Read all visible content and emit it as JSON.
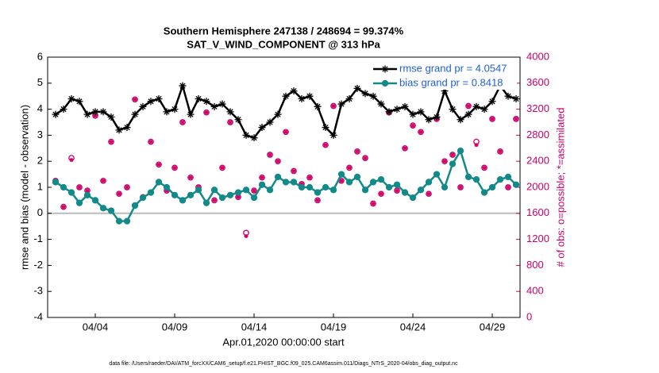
{
  "chart_data": {
    "type": "line",
    "title": "Southern Hemisphere 247138 / 248694 = 99.374%",
    "subtitle": "SAT_V_WIND_COMPONENT @ 313 hPa",
    "xlabel": "Apr.01,2020 00:00:00 start",
    "ylabel": "rmse and bias (model - observation)",
    "y2label": "# of obs: o=possible; *=assimilated",
    "footnote": "data file: /Users/raeder/DAI/ATM_forcXX/CAM6_setup/f.e21.FHIST_BGC.f09_025.CAM6assim.011/Diags_NTrS_2020-04/obs_diag_output.nc",
    "xlim": [
      0,
      29.75
    ],
    "xticks": [
      {
        "value": 3,
        "label": "04/04"
      },
      {
        "value": 8,
        "label": "04/09"
      },
      {
        "value": 13,
        "label": "04/14"
      },
      {
        "value": 18,
        "label": "04/19"
      },
      {
        "value": 23,
        "label": "04/24"
      },
      {
        "value": 28,
        "label": "04/29"
      }
    ],
    "ylim": [
      -4,
      6
    ],
    "yticks": [
      -4,
      -3,
      -2,
      -1,
      0,
      1,
      2,
      3,
      4,
      5,
      6
    ],
    "y2lim": [
      0,
      4000
    ],
    "y2ticks": [
      0,
      400,
      800,
      1200,
      1600,
      2000,
      2400,
      2800,
      3200,
      3600,
      4000
    ],
    "reference_line": 0,
    "legend": "upper right",
    "x": [
      0.5,
      1,
      1.5,
      2,
      2.5,
      3,
      3.5,
      4,
      4.5,
      5,
      5.5,
      6,
      6.5,
      7,
      7.5,
      8,
      8.5,
      9,
      9.5,
      10,
      10.5,
      11,
      11.5,
      12,
      12.5,
      13,
      13.5,
      14,
      14.5,
      15,
      15.5,
      16,
      16.5,
      17,
      17.5,
      18,
      18.5,
      19,
      19.5,
      20,
      20.5,
      21,
      21.5,
      22,
      22.5,
      23,
      23.5,
      24,
      24.5,
      25,
      25.5,
      26,
      26.5,
      27,
      27.5,
      28,
      28.5,
      29,
      29.5
    ],
    "series": [
      {
        "name": "rmse grand pr = 4.0547",
        "color": "#000000",
        "marker": "*",
        "line": true,
        "values": [
          3.8,
          4.0,
          4.4,
          4.3,
          3.8,
          3.9,
          3.9,
          3.7,
          3.2,
          3.3,
          3.8,
          4.1,
          4.3,
          4.4,
          3.9,
          4.0,
          4.9,
          3.8,
          4.4,
          4.3,
          4.1,
          4.2,
          3.9,
          3.6,
          3.0,
          2.9,
          3.3,
          3.5,
          3.8,
          4.5,
          4.7,
          4.4,
          4.5,
          4.1,
          3.3,
          3.0,
          4.2,
          4.4,
          4.8,
          4.6,
          4.5,
          4.2,
          3.9,
          4.0,
          4.1,
          3.8,
          3.9,
          3.6,
          3.7,
          4.7,
          4.0,
          3.6,
          3.8,
          4.1,
          4.0,
          4.3,
          4.9,
          4.5,
          4.4
        ]
      },
      {
        "name": "bias grand pr = 0.8418",
        "color": "#138a8a",
        "marker": "o",
        "line": true,
        "values": [
          1.2,
          1.0,
          0.8,
          0.4,
          0.7,
          0.5,
          0.2,
          0.1,
          -0.3,
          -0.3,
          0.3,
          0.6,
          0.8,
          1.2,
          1.0,
          0.7,
          0.5,
          0.7,
          0.9,
          0.4,
          0.9,
          0.6,
          0.7,
          0.8,
          0.9,
          0.6,
          1.1,
          0.9,
          1.4,
          1.2,
          1.2,
          1.0,
          1.0,
          0.8,
          1.0,
          0.9,
          1.5,
          1.2,
          1.4,
          0.9,
          1.2,
          1.3,
          1.0,
          1.1,
          0.8,
          0.6,
          0.9,
          1.2,
          1.5,
          1.0,
          1.9,
          2.4,
          1.4,
          1.3,
          0.8,
          1.0,
          1.3,
          1.4,
          1.1
        ]
      },
      {
        "color": "#cc0066",
        "marker": "o",
        "line": false,
        "axis": "y2",
        "values": [
          2100,
          1700,
          2450,
          2000,
          1950,
          3100,
          2100,
          2700,
          1900,
          2000,
          3350,
          1850,
          2700,
          2350,
          1950,
          2300,
          3000,
          2150,
          2000,
          3150,
          1800,
          2300,
          3000,
          1850,
          1300,
          1950,
          2150,
          2500,
          2400,
          2850,
          2250,
          2050,
          2150,
          1800,
          2650,
          3250,
          2100,
          2300,
          2550,
          2450,
          1750,
          1900,
          3150,
          1950,
          2600,
          2950,
          2850,
          1900,
          3050,
          2400,
          2500,
          2000,
          3250,
          2700,
          2300,
          3050,
          2550,
          2000,
          3050
        ]
      },
      {
        "color": "#cc0066",
        "marker": "*",
        "line": false,
        "axis": "y2",
        "values": [
          2100,
          1700,
          2420,
          2000,
          1950,
          3100,
          2100,
          2700,
          1900,
          2000,
          3350,
          1850,
          2700,
          2350,
          1950,
          2300,
          3000,
          2150,
          2000,
          3150,
          1800,
          2300,
          3000,
          1850,
          1250,
          1950,
          2150,
          2500,
          2400,
          2850,
          2250,
          2050,
          2150,
          1800,
          2650,
          3250,
          2100,
          2300,
          2550,
          2450,
          1750,
          1900,
          3150,
          1950,
          2600,
          2950,
          2850,
          1900,
          3050,
          2400,
          2500,
          2000,
          3250,
          2650,
          2300,
          3050,
          2550,
          2000,
          3050
        ]
      }
    ]
  }
}
